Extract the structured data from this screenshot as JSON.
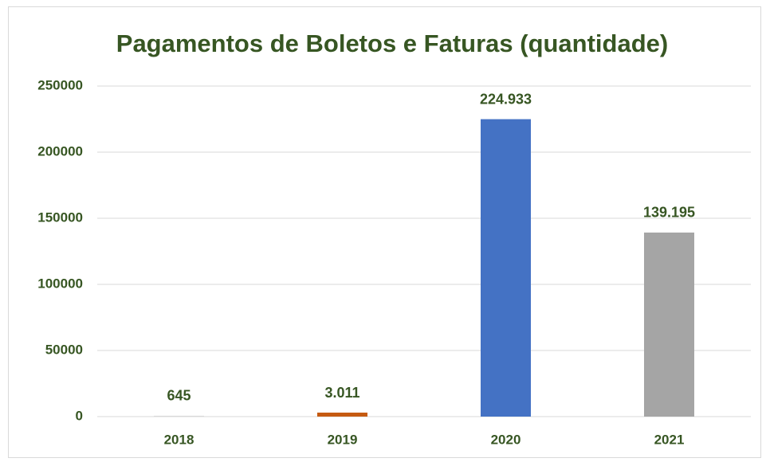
{
  "chart_data": {
    "type": "bar",
    "title": "Pagamentos de Boletos e Faturas (quantidade)",
    "categories": [
      "2018",
      "2019",
      "2020",
      "2021"
    ],
    "values": [
      645,
      3011,
      224933,
      139195
    ],
    "value_labels": [
      "645",
      "3.011",
      "224.933",
      "139.195"
    ],
    "colors": [
      "#d9d9d9",
      "#c55a11",
      "#4472c4",
      "#a5a5a5"
    ],
    "ylim": [
      0,
      250000
    ],
    "yticks": [
      0,
      50000,
      100000,
      150000,
      200000,
      250000
    ],
    "grid": true
  }
}
